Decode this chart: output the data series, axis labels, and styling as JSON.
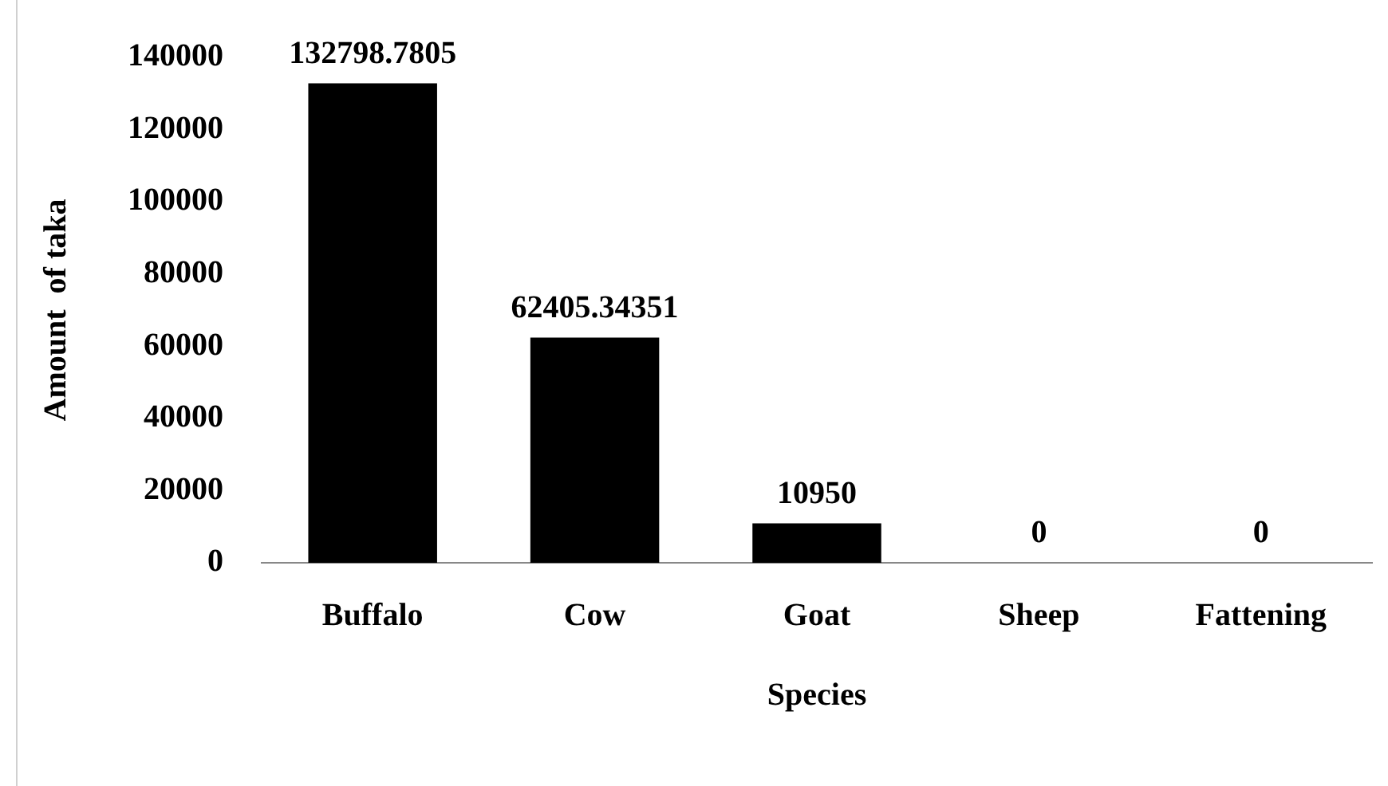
{
  "chart_data": {
    "type": "bar",
    "xlabel": "Species",
    "ylabel": "Amount  of taka",
    "categories": [
      "Buffalo",
      "Cow",
      "Goat",
      "Sheep",
      "Fattening"
    ],
    "values": [
      132798.7805,
      62405.34351,
      10950,
      0,
      0
    ],
    "color": "#000000",
    "ylim": [
      0,
      140000
    ],
    "yticks": [
      0,
      20000,
      40000,
      60000,
      80000,
      100000,
      120000,
      140000
    ],
    "grid": false,
    "legend": false,
    "data_labels": true
  }
}
